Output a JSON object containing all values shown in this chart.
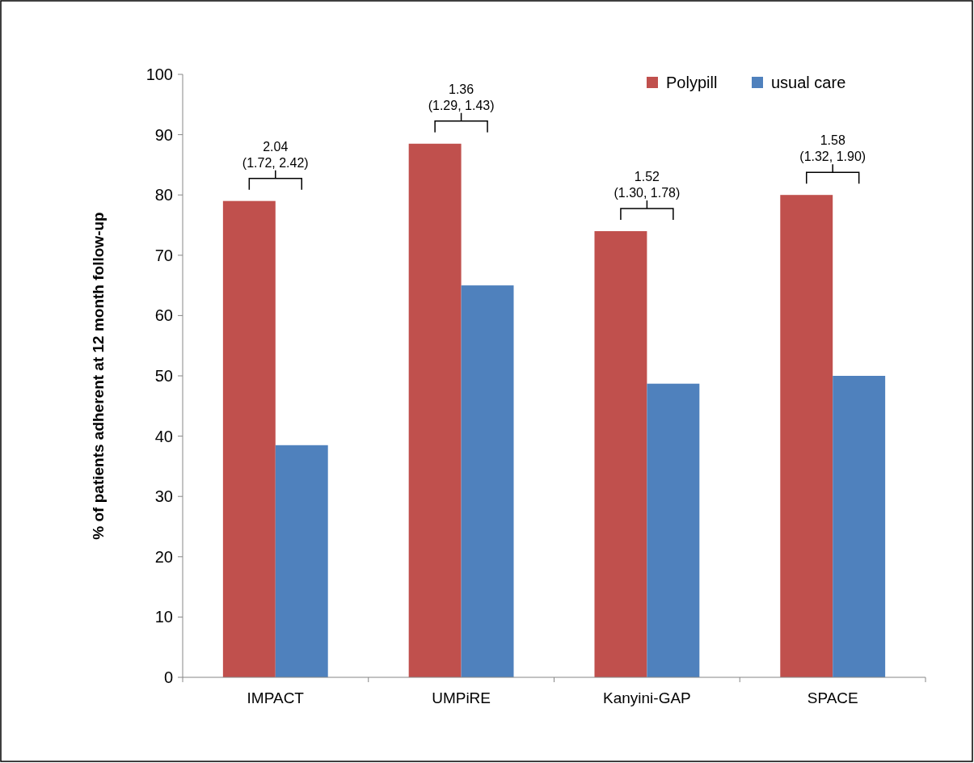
{
  "chart_data": {
    "type": "bar",
    "ylabel": "% of patients adherent at 12 month follow-up",
    "categories": [
      "IMPACT",
      "UMPiRE",
      "Kanyini-GAP",
      "SPACE"
    ],
    "series": [
      {
        "name": "Polypill",
        "color": "#c0504d",
        "values": [
          79,
          88.5,
          74,
          80
        ]
      },
      {
        "name": "usual care",
        "color": "#4f81bd",
        "values": [
          38.5,
          65,
          48.7,
          50
        ]
      }
    ],
    "ylim": [
      0,
      100
    ],
    "yticks": [
      0,
      10,
      20,
      30,
      40,
      50,
      60,
      70,
      80,
      90,
      100
    ],
    "grid": false,
    "legend": "top right",
    "annotations": [
      "2.04\n(1.72, 2.42)",
      "1.36\n(1.29, 1.43)",
      "1.52\n(1.30, 1.78)",
      "1.58\n(1.32, 1.90)"
    ]
  }
}
